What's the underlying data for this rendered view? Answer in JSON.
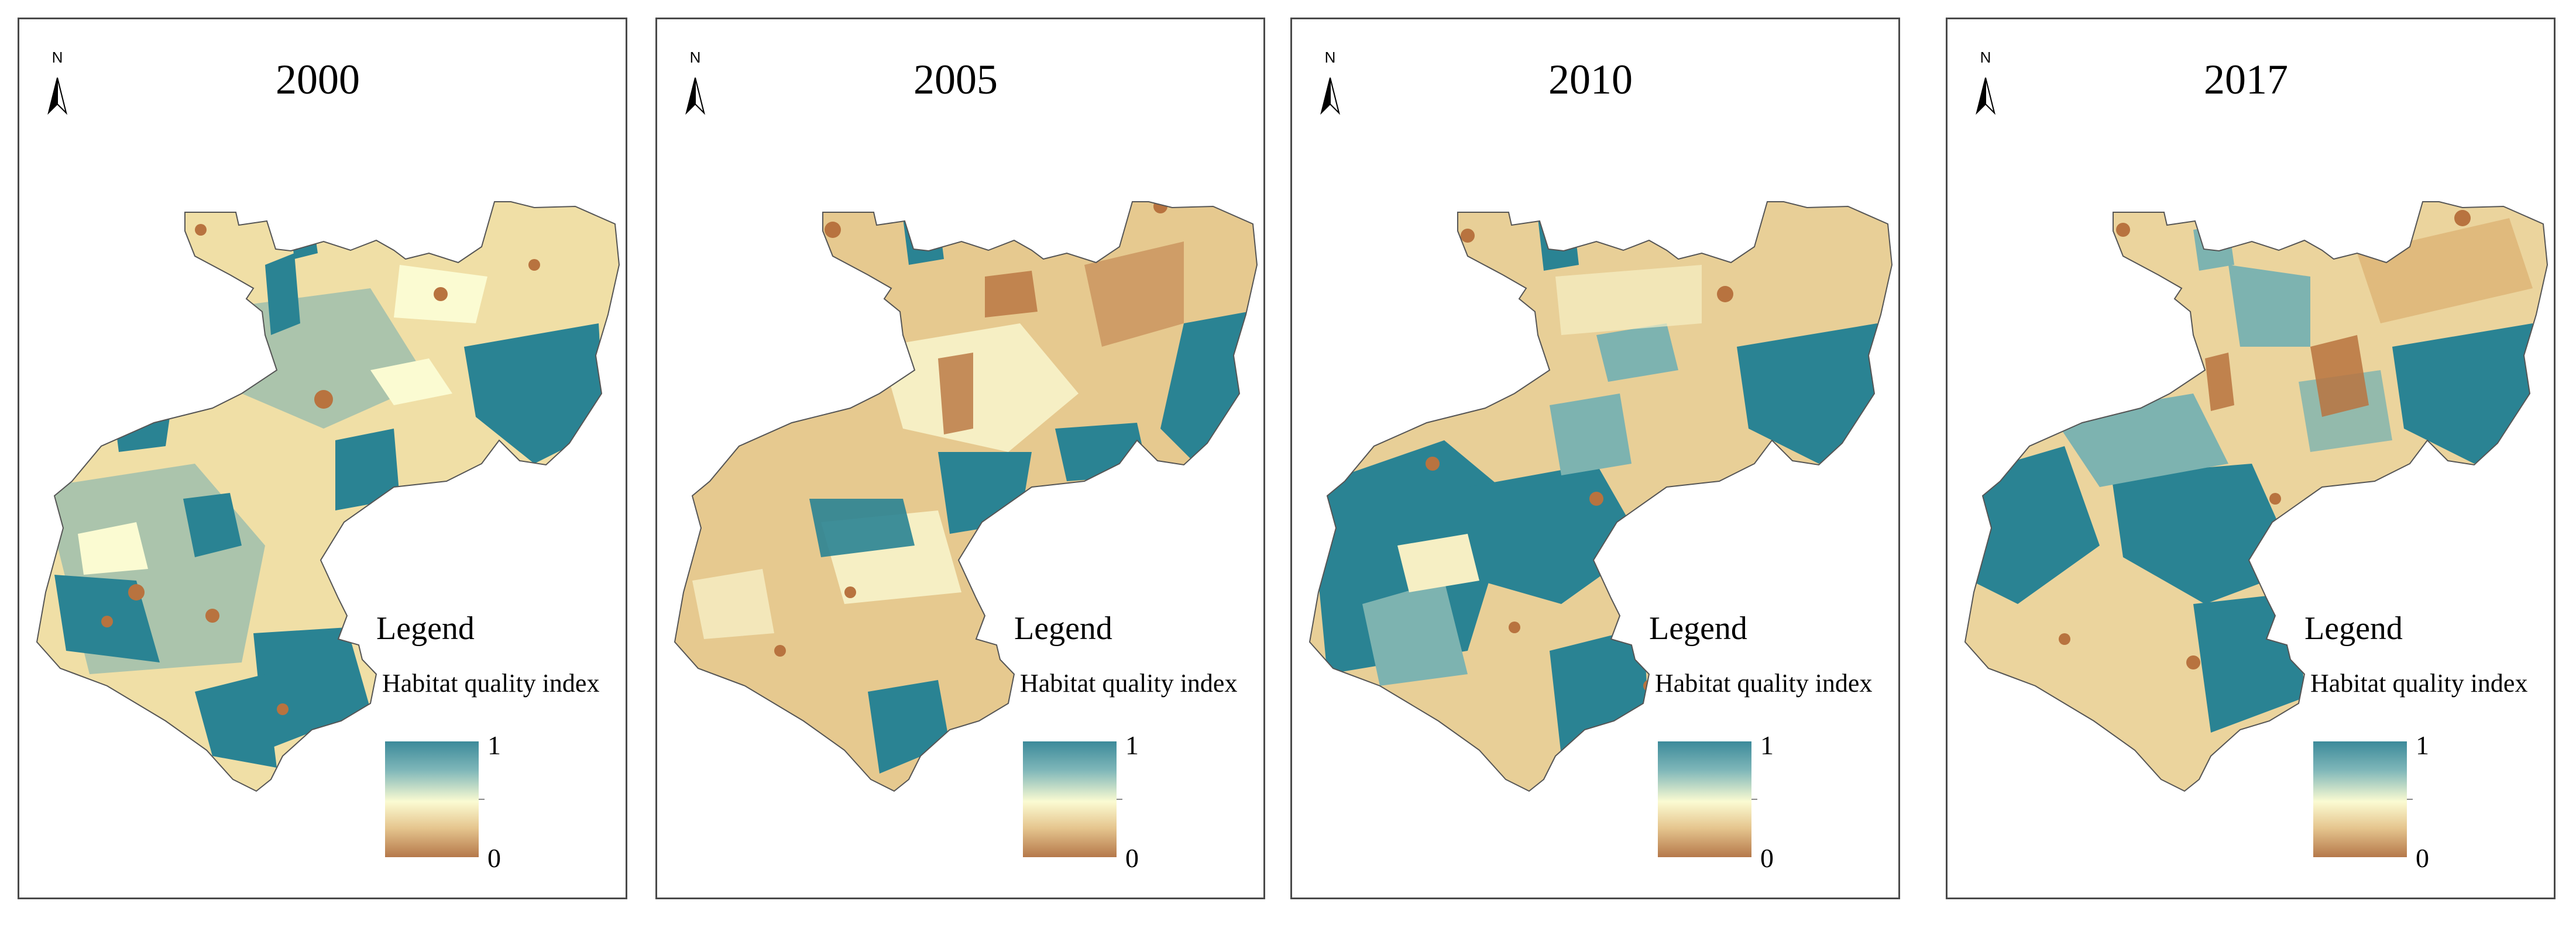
{
  "figure": {
    "panels": [
      {
        "year": "2000",
        "legend_title": "Legend",
        "legend_subtitle": "Habitat quality index",
        "legend_max": "1",
        "legend_min": "0",
        "north_label": "N"
      },
      {
        "year": "2005",
        "legend_title": "Legend",
        "legend_subtitle": "Habitat quality index",
        "legend_max": "1",
        "legend_min": "0",
        "north_label": "N"
      },
      {
        "year": "2010",
        "legend_title": "Legend",
        "legend_subtitle": "Habitat quality index",
        "legend_max": "1",
        "legend_min": "0",
        "north_label": "N"
      },
      {
        "year": "2017",
        "legend_title": "Legend",
        "legend_subtitle": "Habitat quality index",
        "legend_max": "1",
        "legend_min": "0",
        "north_label": "N"
      }
    ],
    "legend_colors": {
      "high": "#3c8a9a",
      "mid_high": "#7fb7b9",
      "mid": "#fbfbd2",
      "mid_low": "#e5c58e",
      "low": "#b5784a"
    },
    "map_palette": {
      "high_teal": "#2a8393",
      "mid_teal": "#7db3b0",
      "pale": "#f3e9b8",
      "tan": "#e8cf97",
      "brown": "#b8733f"
    }
  }
}
